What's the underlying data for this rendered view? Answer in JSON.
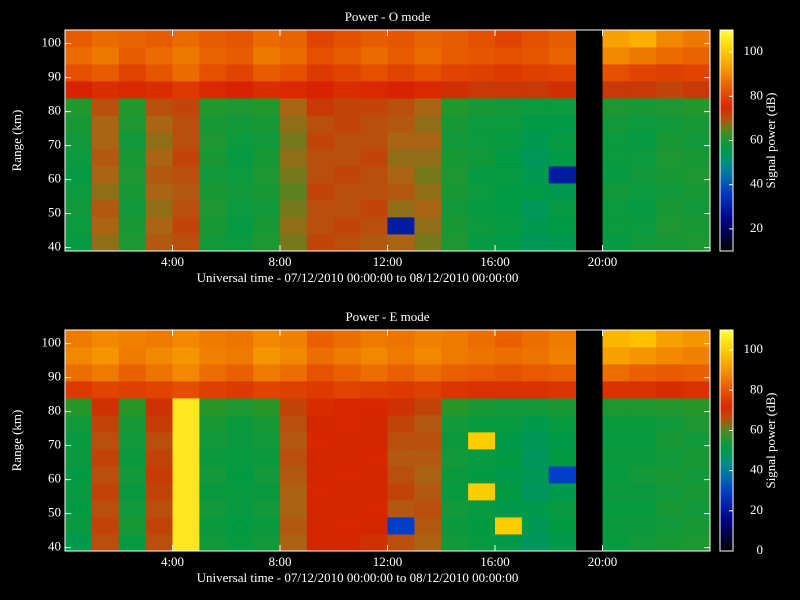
{
  "chart_data": [
    {
      "type": "heatmap",
      "title": "Power - O mode",
      "x_label": "Universal time - 07/12/2010 00:00:00 to 08/12/2010 00:00:00",
      "y_label": "Range (km)",
      "colorbar_label": "Signal power (dB)",
      "xbins": [
        0,
        1,
        2,
        3,
        4,
        5,
        6,
        7,
        8,
        9,
        10,
        11,
        12,
        13,
        14,
        15,
        16,
        17,
        18,
        19,
        20,
        21,
        22,
        23,
        24
      ],
      "ybins": [
        39,
        44,
        49,
        54,
        59,
        64,
        69,
        74,
        79,
        84,
        89,
        94,
        99,
        104
      ],
      "xlim": [
        0,
        24
      ],
      "ylim": [
        39,
        104
      ],
      "clim": [
        10,
        110
      ],
      "xticks": [
        {
          "value": 4,
          "label": "4:00"
        },
        {
          "value": 8,
          "label": "8:00"
        },
        {
          "value": 12,
          "label": "12:00"
        },
        {
          "value": 16,
          "label": "16:00"
        },
        {
          "value": 20,
          "label": "20:00"
        }
      ],
      "yticks": [
        40,
        50,
        60,
        70,
        80,
        90,
        100
      ],
      "cticks": [
        20,
        40,
        60,
        80,
        100
      ],
      "z": [
        [
          57,
          67,
          61,
          69,
          70,
          59,
          58,
          61,
          66,
          71,
          70,
          69,
          68,
          66,
          61,
          57,
          56,
          54,
          55,
          null,
          57,
          59,
          60,
          61
        ],
        [
          58,
          68,
          60,
          68,
          71,
          60,
          57,
          60,
          67,
          70,
          71,
          70,
          30,
          67,
          60,
          58,
          57,
          55,
          56,
          null,
          58,
          58,
          61,
          60
        ],
        [
          59,
          69,
          59,
          67,
          70,
          61,
          58,
          59,
          66,
          70,
          70,
          71,
          67,
          68,
          59,
          57,
          56,
          54,
          57,
          null,
          58,
          57,
          60,
          59
        ],
        [
          58,
          67,
          60,
          68,
          69,
          60,
          59,
          60,
          65,
          71,
          70,
          70,
          69,
          67,
          60,
          58,
          56,
          56,
          55,
          null,
          59,
          58,
          59,
          60
        ],
        [
          57,
          68,
          61,
          69,
          70,
          59,
          58,
          61,
          66,
          70,
          71,
          70,
          68,
          66,
          61,
          57,
          57,
          55,
          30,
          null,
          57,
          59,
          60,
          61
        ],
        [
          58,
          69,
          60,
          68,
          71,
          60,
          57,
          60,
          67,
          70,
          70,
          71,
          67,
          67,
          60,
          59,
          56,
          54,
          56,
          null,
          58,
          58,
          61,
          60
        ],
        [
          59,
          68,
          59,
          67,
          70,
          61,
          58,
          59,
          66,
          71,
          70,
          70,
          68,
          68,
          59,
          58,
          57,
          55,
          57,
          null,
          58,
          57,
          60,
          59
        ],
        [
          60,
          68,
          61,
          68,
          70,
          60,
          59,
          60,
          67,
          70,
          71,
          70,
          69,
          67,
          60,
          58,
          58,
          56,
          56,
          null,
          59,
          58,
          59,
          60
        ],
        [
          62,
          70,
          62,
          70,
          71,
          62,
          61,
          62,
          68,
          72,
          71,
          71,
          70,
          68,
          62,
          60,
          59,
          58,
          58,
          null,
          61,
          60,
          61,
          62
        ],
        [
          74,
          76,
          75,
          76,
          78,
          75,
          74,
          76,
          75,
          74,
          76,
          75,
          74,
          75,
          73,
          72,
          72,
          72,
          73,
          null,
          72,
          72,
          71,
          72
        ],
        [
          82,
          84,
          80,
          83,
          86,
          82,
          80,
          84,
          82,
          78,
          80,
          82,
          80,
          82,
          80,
          79,
          78,
          79,
          80,
          null,
          82,
          80,
          79,
          80
        ],
        [
          86,
          88,
          84,
          86,
          88,
          85,
          84,
          88,
          86,
          82,
          84,
          86,
          84,
          86,
          84,
          83,
          82,
          83,
          85,
          null,
          90,
          88,
          86,
          85
        ],
        [
          84,
          86,
          85,
          84,
          86,
          84,
          83,
          86,
          85,
          80,
          82,
          84,
          83,
          85,
          84,
          82,
          80,
          82,
          84,
          null,
          94,
          96,
          90,
          88
        ]
      ]
    },
    {
      "type": "heatmap",
      "title": "Power - E mode",
      "x_label": "Universal time - 07/12/2010 00:00:00 to 08/12/2010 00:00:00",
      "y_label": "Range (km)",
      "colorbar_label": "Signal power (dB)",
      "xbins": [
        0,
        1,
        2,
        3,
        4,
        5,
        6,
        7,
        8,
        9,
        10,
        11,
        12,
        13,
        14,
        15,
        16,
        17,
        18,
        19,
        20,
        21,
        22,
        23,
        24
      ],
      "ybins": [
        39,
        44,
        49,
        54,
        59,
        64,
        69,
        74,
        79,
        84,
        89,
        94,
        99,
        104
      ],
      "xlim": [
        0,
        24
      ],
      "ylim": [
        39,
        104
      ],
      "clim": [
        0,
        110
      ],
      "xticks": [
        {
          "value": 4,
          "label": "4:00"
        },
        {
          "value": 8,
          "label": "8:00"
        },
        {
          "value": 12,
          "label": "12:00"
        },
        {
          "value": 16,
          "label": "16:00"
        },
        {
          "value": 20,
          "label": "20:00"
        }
      ],
      "yticks": [
        40,
        50,
        60,
        70,
        80,
        90,
        100
      ],
      "cticks": [
        0,
        20,
        40,
        60,
        80,
        100
      ],
      "z": [
        [
          50,
          66,
          52,
          66,
          105,
          54,
          52,
          54,
          64,
          70,
          70,
          69,
          66,
          64,
          54,
          52,
          50,
          48,
          50,
          null,
          52,
          54,
          55,
          56
        ],
        [
          52,
          67,
          55,
          67,
          105,
          53,
          51,
          53,
          65,
          70,
          71,
          70,
          30,
          65,
          53,
          51,
          100,
          49,
          51,
          null,
          53,
          53,
          54,
          55
        ],
        [
          51,
          66,
          54,
          66,
          105,
          54,
          52,
          54,
          64,
          70,
          70,
          71,
          65,
          66,
          54,
          52,
          50,
          50,
          52,
          null,
          52,
          52,
          55,
          54
        ],
        [
          52,
          67,
          53,
          67,
          105,
          53,
          52,
          53,
          64,
          71,
          70,
          70,
          67,
          65,
          52,
          100,
          51,
          48,
          50,
          null,
          53,
          53,
          54,
          55
        ],
        [
          51,
          66,
          54,
          68,
          105,
          54,
          51,
          54,
          65,
          70,
          71,
          70,
          66,
          64,
          53,
          51,
          50,
          49,
          30,
          null,
          52,
          54,
          55,
          54
        ],
        [
          53,
          67,
          53,
          67,
          105,
          53,
          52,
          53,
          66,
          70,
          70,
          71,
          65,
          65,
          54,
          52,
          51,
          48,
          51,
          null,
          53,
          53,
          54,
          55
        ],
        [
          52,
          66,
          54,
          66,
          105,
          54,
          53,
          54,
          65,
          71,
          70,
          70,
          66,
          66,
          53,
          100,
          50,
          49,
          50,
          null,
          52,
          52,
          55,
          54
        ],
        [
          54,
          67,
          55,
          68,
          105,
          55,
          53,
          55,
          66,
          70,
          71,
          70,
          67,
          65,
          54,
          52,
          52,
          50,
          52,
          null,
          53,
          53,
          54,
          56
        ],
        [
          58,
          69,
          58,
          69,
          105,
          58,
          56,
          58,
          67,
          72,
          71,
          71,
          69,
          67,
          58,
          55,
          54,
          54,
          55,
          null,
          56,
          56,
          57,
          58
        ],
        [
          75,
          77,
          76,
          77,
          79,
          76,
          75,
          77,
          76,
          75,
          77,
          76,
          75,
          76,
          74,
          73,
          73,
          73,
          74,
          null,
          73,
          73,
          72,
          73
        ],
        [
          84,
          86,
          82,
          85,
          88,
          84,
          82,
          86,
          84,
          80,
          82,
          84,
          82,
          84,
          82,
          81,
          80,
          81,
          82,
          null,
          84,
          82,
          81,
          82
        ],
        [
          88,
          90,
          86,
          88,
          90,
          87,
          86,
          90,
          88,
          84,
          86,
          88,
          86,
          88,
          86,
          85,
          84,
          85,
          87,
          null,
          92,
          90,
          88,
          87
        ],
        [
          86,
          88,
          87,
          86,
          88,
          86,
          85,
          88,
          87,
          82,
          84,
          86,
          85,
          87,
          86,
          84,
          82,
          84,
          86,
          null,
          96,
          98,
          92,
          90
        ]
      ]
    }
  ]
}
